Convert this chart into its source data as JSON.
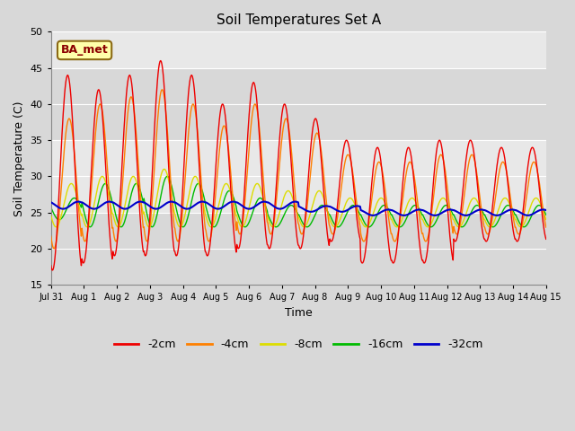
{
  "title": "Soil Temperatures Set A",
  "xlabel": "Time",
  "ylabel": "Soil Temperature (C)",
  "ylim": [
    15,
    50
  ],
  "yticks": [
    15,
    20,
    25,
    30,
    35,
    40,
    45,
    50
  ],
  "annotation_text": "BA_met",
  "annotation_color": "#8B0000",
  "annotation_bg": "#FFFFAA",
  "fig_bg": "#D8D8D8",
  "plot_bg_light": "#E8E8E8",
  "plot_bg_dark": "#D0D0D0",
  "colors": {
    "-2cm": "#EE0000",
    "-4cm": "#FF8000",
    "-8cm": "#DDDD00",
    "-16cm": "#00BB00",
    "-32cm": "#0000CC"
  },
  "legend_labels": [
    "-2cm",
    "-4cm",
    "-8cm",
    "-16cm",
    "-32cm"
  ],
  "n_days": 16,
  "day_labels": [
    "Jul 31",
    "Aug 1",
    "Aug 2",
    "Aug 3",
    "Aug 4",
    "Aug 5",
    "Aug 6",
    "Aug 7",
    "Aug 8",
    "Aug 9",
    "Aug 10",
    "Aug 11",
    "Aug 12",
    "Aug 13",
    "Aug 14",
    "Aug 15"
  ],
  "samples_per_day": 48,
  "depth_2cm_peaks": [
    44,
    42,
    44,
    46,
    44,
    40,
    43,
    40,
    38,
    35,
    34,
    34,
    35,
    35,
    34,
    34
  ],
  "depth_2cm_mins": [
    17,
    18,
    19,
    19,
    19,
    19,
    20,
    20,
    20,
    21,
    18,
    18,
    18,
    21,
    21,
    21
  ],
  "depth_4cm_peaks": [
    38,
    40,
    41,
    42,
    40,
    37,
    40,
    38,
    36,
    33,
    32,
    32,
    33,
    33,
    32,
    32
  ],
  "depth_4cm_mins": [
    20,
    21,
    21,
    21,
    21,
    21,
    22,
    22,
    22,
    22,
    21,
    21,
    21,
    22,
    22,
    22
  ],
  "depth_8cm_peaks": [
    29,
    30,
    30,
    31,
    30,
    29,
    29,
    28,
    28,
    27,
    27,
    27,
    27,
    27,
    27,
    27
  ],
  "depth_8cm_mins": [
    23,
    23,
    23,
    23,
    23,
    23,
    23,
    23,
    23,
    23,
    23,
    23,
    23,
    23,
    23,
    23
  ],
  "depth_16cm_peaks": [
    27,
    29,
    29,
    30,
    29,
    28,
    27,
    26,
    26,
    26,
    26,
    26,
    26,
    26,
    26,
    26
  ],
  "depth_16cm_mins": [
    24,
    23,
    23,
    23,
    23,
    23,
    23,
    23,
    23,
    23,
    23,
    23,
    23,
    23,
    23,
    23
  ],
  "depth_32cm_base": [
    26,
    26,
    26,
    26,
    26,
    26,
    26,
    26,
    25.5,
    25.5,
    25,
    25,
    25,
    25,
    25,
    25
  ],
  "depth_32cm_amp": [
    0.5,
    0.5,
    0.5,
    0.5,
    0.5,
    0.5,
    0.5,
    0.5,
    0.4,
    0.4,
    0.4,
    0.4,
    0.4,
    0.4,
    0.4,
    0.4
  ],
  "band_ranges": [
    [
      15,
      25
    ],
    [
      25,
      35
    ],
    [
      35,
      45
    ],
    [
      45,
      50
    ]
  ],
  "band_colors": [
    "#D8D8D8",
    "#E8E8E8",
    "#D8D8D8",
    "#E8E8E8"
  ]
}
